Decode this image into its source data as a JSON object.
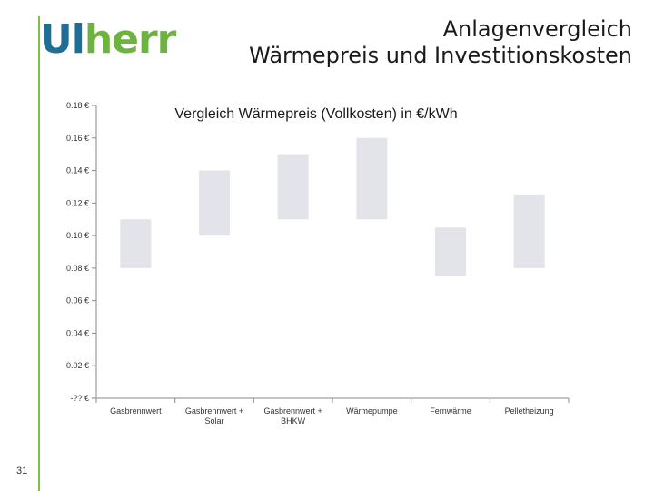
{
  "logo": {
    "part1": "Ul",
    "part2": "herr"
  },
  "slide": {
    "title_line1": "Anlagenvergleich",
    "title_line2": "Wärmepreis und Investitionskosten",
    "page_number": "31"
  },
  "colors": {
    "accent_green": "#7dc242",
    "logo_blue": "#1f6f95",
    "logo_green": "#6db33f",
    "bar_fill": "#e3e3ea"
  },
  "chart_data": {
    "type": "bar",
    "subtype": "floating-range",
    "title": "Vergleich Wärmepreis (Vollkosten) in €/kWh",
    "xlabel": "",
    "ylabel": "",
    "ylim": [
      0,
      0.18
    ],
    "y_tick_labels": [
      "-?? €",
      "0.02 €",
      "0.04 €",
      "0.06 €",
      "0.08 €",
      "0.10 €",
      "0.12 €",
      "0.14 €",
      "0.16 €",
      "0.18 €"
    ],
    "categories": [
      "Gasbrennwert",
      "Gasbrennwert + Solar",
      "Gasbrennwert + BHKW",
      "Wärmepumpe",
      "Fernwärme",
      "Pelletheizung"
    ],
    "low": [
      0.08,
      0.1,
      0.11,
      0.11,
      0.075,
      0.08
    ],
    "high": [
      0.11,
      0.14,
      0.15,
      0.16,
      0.105,
      0.125
    ],
    "grid": false,
    "legend": "none"
  }
}
